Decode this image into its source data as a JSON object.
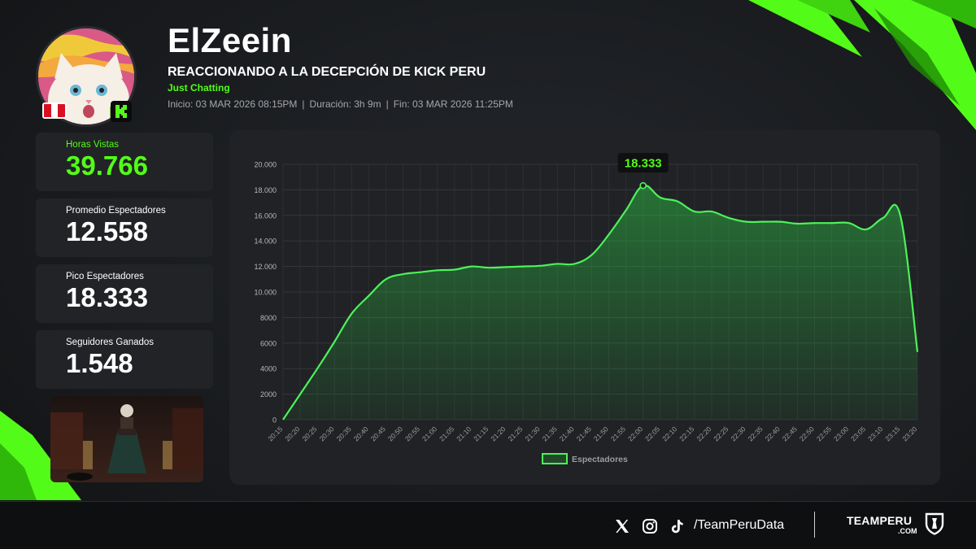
{
  "header": {
    "streamer": "ElZeein",
    "title": "REACCIONANDO A LA DECEPCIÓN DE KICK PERU",
    "category": "Just Chatting",
    "start": "Inicio: 03 MAR 2026 08:15PM",
    "duration": "Duración: 3h 9m",
    "end": "Fin: 03 MAR 2026 11:25PM",
    "separator": "|",
    "country_flag_icon": "peru-flag-icon",
    "platform_icon": "kick-logo-icon"
  },
  "stats": [
    {
      "label": "Horas Vistas",
      "value": "39.766"
    },
    {
      "label": "Promedio Espectadores",
      "value": "12.558"
    },
    {
      "label": "Pico Espectadores",
      "value": "18.333"
    },
    {
      "label": "Seguidores Ganados",
      "value": "1.548"
    }
  ],
  "colors": {
    "accent": "#53fc18",
    "line": "#4cf25a",
    "background": "#17191c",
    "panel": "#202225"
  },
  "chart_data": {
    "type": "area",
    "x": [
      "20:15",
      "20:20",
      "20:25",
      "20:30",
      "20:35",
      "20:40",
      "20:45",
      "20:50",
      "20:55",
      "21:00",
      "21:05",
      "21:10",
      "21:15",
      "21:20",
      "21:25",
      "21:30",
      "21:35",
      "21:40",
      "21:45",
      "21:50",
      "21:55",
      "22:00",
      "22:05",
      "22:10",
      "22:15",
      "22:20",
      "22:25",
      "22:30",
      "22:35",
      "22:40",
      "22:45",
      "22:50",
      "22:55",
      "23:00",
      "23:05",
      "23:10",
      "23:15",
      "23:20"
    ],
    "series": [
      {
        "name": "Espectadores",
        "values": [
          0,
          2000,
          4000,
          6100,
          8300,
          9700,
          11000,
          11400,
          11550,
          11700,
          11750,
          12000,
          11900,
          11950,
          12000,
          12050,
          12200,
          12200,
          12900,
          14500,
          16400,
          18333,
          17400,
          17100,
          16300,
          16300,
          15800,
          15500,
          15500,
          15500,
          15350,
          15400,
          15400,
          15400,
          14900,
          15800,
          16000,
          5300
        ]
      }
    ],
    "ylim": [
      0,
      20000
    ],
    "yticks": [
      {
        "value": 0,
        "label": "0"
      },
      {
        "value": 2000,
        "label": "2000"
      },
      {
        "value": 4000,
        "label": "4000"
      },
      {
        "value": 6000,
        "label": "6000"
      },
      {
        "value": 8000,
        "label": "8000"
      },
      {
        "value": 10000,
        "label": "10.000"
      },
      {
        "value": 12000,
        "label": "12.000"
      },
      {
        "value": 14000,
        "label": "14.000"
      },
      {
        "value": 16000,
        "label": "16.000"
      },
      {
        "value": 18000,
        "label": "18.000"
      },
      {
        "value": 20000,
        "label": "20.000"
      }
    ],
    "peak": {
      "x": "22:00",
      "value": 18333,
      "label": "18.333"
    },
    "grid": true,
    "legend": "bottom-center"
  },
  "footer": {
    "social_icons": [
      "x-logo-icon",
      "instagram-icon",
      "tiktok-icon"
    ],
    "handle": "/TeamPeruData",
    "brand": "TEAMPERU",
    "brand_domain": ".COM",
    "brand_icon": "teamperu-shield-icon"
  }
}
